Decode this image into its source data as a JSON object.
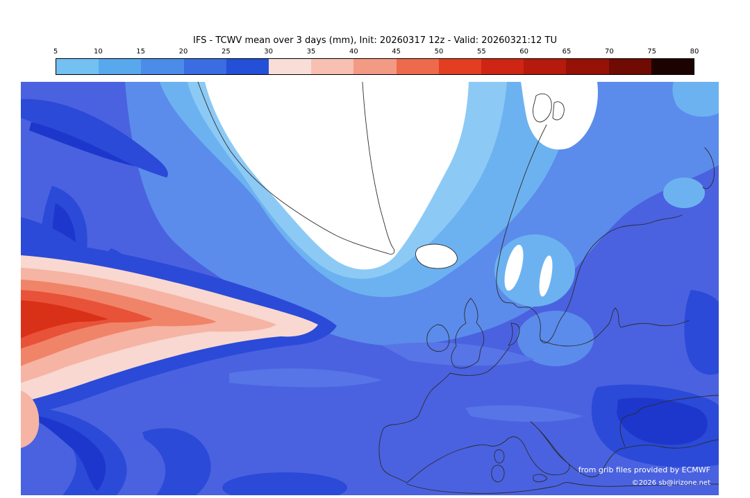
{
  "title": "IFS - TCWV mean over 3 days (mm), Init: 20260317 12z - Valid: 20260321:12 TU",
  "colorbar": {
    "unit": "mm",
    "ticks": [
      "5",
      "10",
      "15",
      "20",
      "25",
      "30",
      "35",
      "40",
      "45",
      "50",
      "55",
      "60",
      "65",
      "70",
      "75",
      "80"
    ],
    "colors": [
      "#73c0f2",
      "#58a8ee",
      "#4b8ce9",
      "#3a6ce2",
      "#2450d8",
      "#f9ded8",
      "#f7c0b2",
      "#f39a84",
      "#ed6a4c",
      "#e33d22",
      "#cf2514",
      "#b51a0c",
      "#961206",
      "#700b03",
      "#1c0301"
    ]
  },
  "credits": {
    "source": "from grib files provided by ECMWF",
    "copyright": "©2026 sb@irizone.net"
  },
  "map_palette": {
    "base": "#4a62e0",
    "mid_light": "#5775e7",
    "blue15": "#5b8ceb",
    "blue10": "#6db2f0",
    "blue5": "#8ccaf5",
    "dark1": "#2b4ad7",
    "dark2": "#1d37cc",
    "low_white": "#ffffff",
    "pink30": "#f8d8d0",
    "pink35": "#f6b4a4",
    "pink40": "#f08468",
    "red45": "#e85238",
    "red50": "#d93018",
    "coast": "#2b2b2b"
  }
}
